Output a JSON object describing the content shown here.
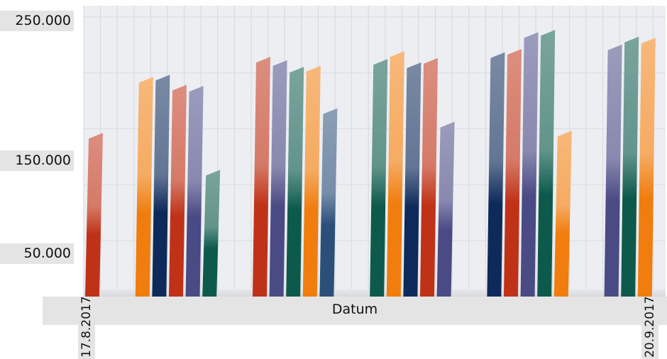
{
  "chart_data": {
    "type": "bar",
    "title": "",
    "xlabel": "Datum",
    "ylabel": "",
    "y_tick_labels": [
      "250.000",
      "150.000",
      "50.000"
    ],
    "x_tick_labels": [
      "17.8.2017",
      "20.9.2017"
    ],
    "grid": true,
    "legend": "none",
    "colors": [
      "#bf3217",
      "#f07d0e",
      "#0e2a5a",
      "#4a4a85",
      "#0d5a4d",
      "#2c4f7a"
    ],
    "ylim": [
      0,
      260000
    ],
    "bars": [
      {
        "slot": 1,
        "value": 145000,
        "color": 0
      },
      {
        "slot": 4,
        "value": 195000,
        "color": 1
      },
      {
        "slot": 5,
        "value": 197000,
        "color": 2
      },
      {
        "slot": 6,
        "value": 188000,
        "color": 0
      },
      {
        "slot": 7,
        "value": 187000,
        "color": 3
      },
      {
        "slot": 8,
        "value": 112000,
        "color": 4
      },
      {
        "slot": 11,
        "value": 213000,
        "color": 0
      },
      {
        "slot": 12,
        "value": 210000,
        "color": 3
      },
      {
        "slot": 13,
        "value": 204000,
        "color": 4
      },
      {
        "slot": 14,
        "value": 205000,
        "color": 1
      },
      {
        "slot": 15,
        "value": 167000,
        "color": 5
      },
      {
        "slot": 18,
        "value": 211000,
        "color": 4
      },
      {
        "slot": 19,
        "value": 218000,
        "color": 1
      },
      {
        "slot": 20,
        "value": 208000,
        "color": 2
      },
      {
        "slot": 21,
        "value": 212000,
        "color": 0
      },
      {
        "slot": 22,
        "value": 155000,
        "color": 3
      },
      {
        "slot": 25,
        "value": 217000,
        "color": 2
      },
      {
        "slot": 26,
        "value": 220000,
        "color": 0
      },
      {
        "slot": 27,
        "value": 235000,
        "color": 3
      },
      {
        "slot": 28,
        "value": 237000,
        "color": 4
      },
      {
        "slot": 29,
        "value": 147000,
        "color": 1
      },
      {
        "slot": 32,
        "value": 224000,
        "color": 3
      },
      {
        "slot": 33,
        "value": 231000,
        "color": 4
      },
      {
        "slot": 34,
        "value": 230000,
        "color": 1
      }
    ]
  }
}
